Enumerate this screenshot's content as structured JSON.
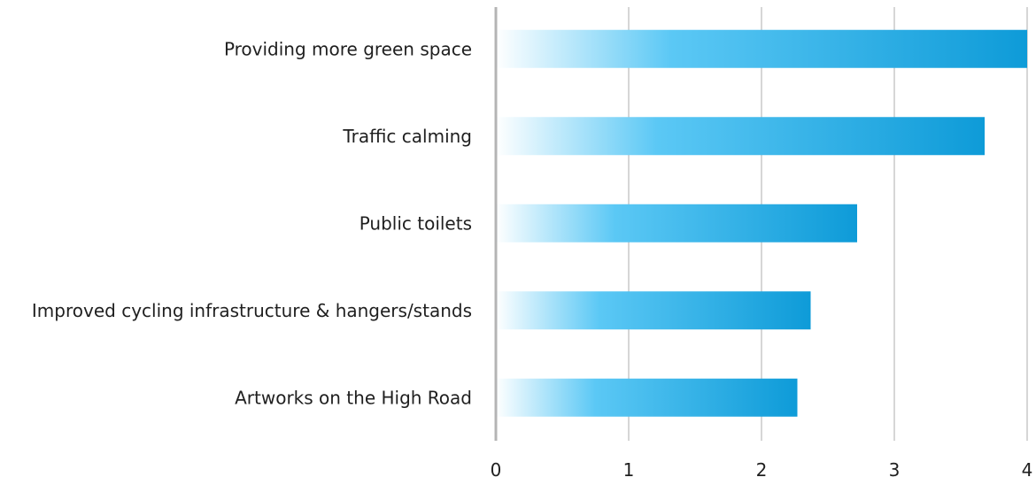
{
  "chart_data": {
    "type": "bar",
    "orientation": "horizontal",
    "categories": [
      "Providing more green space",
      "Traffic calming",
      "Public toilets",
      "Improved cycling infrastructure & hangers/stands",
      "Artworks on the High Road"
    ],
    "values": [
      4.0,
      3.68,
      2.72,
      2.37,
      2.27
    ],
    "xlim": [
      0,
      4
    ],
    "xticks": [
      "0",
      "1",
      "2",
      "3",
      "4"
    ],
    "grid": true,
    "legend": "none",
    "colors": {
      "bar_light": "#ffffff",
      "bar_mid": "#5bc8f5",
      "bar_dark": "#0e9bd8"
    }
  }
}
